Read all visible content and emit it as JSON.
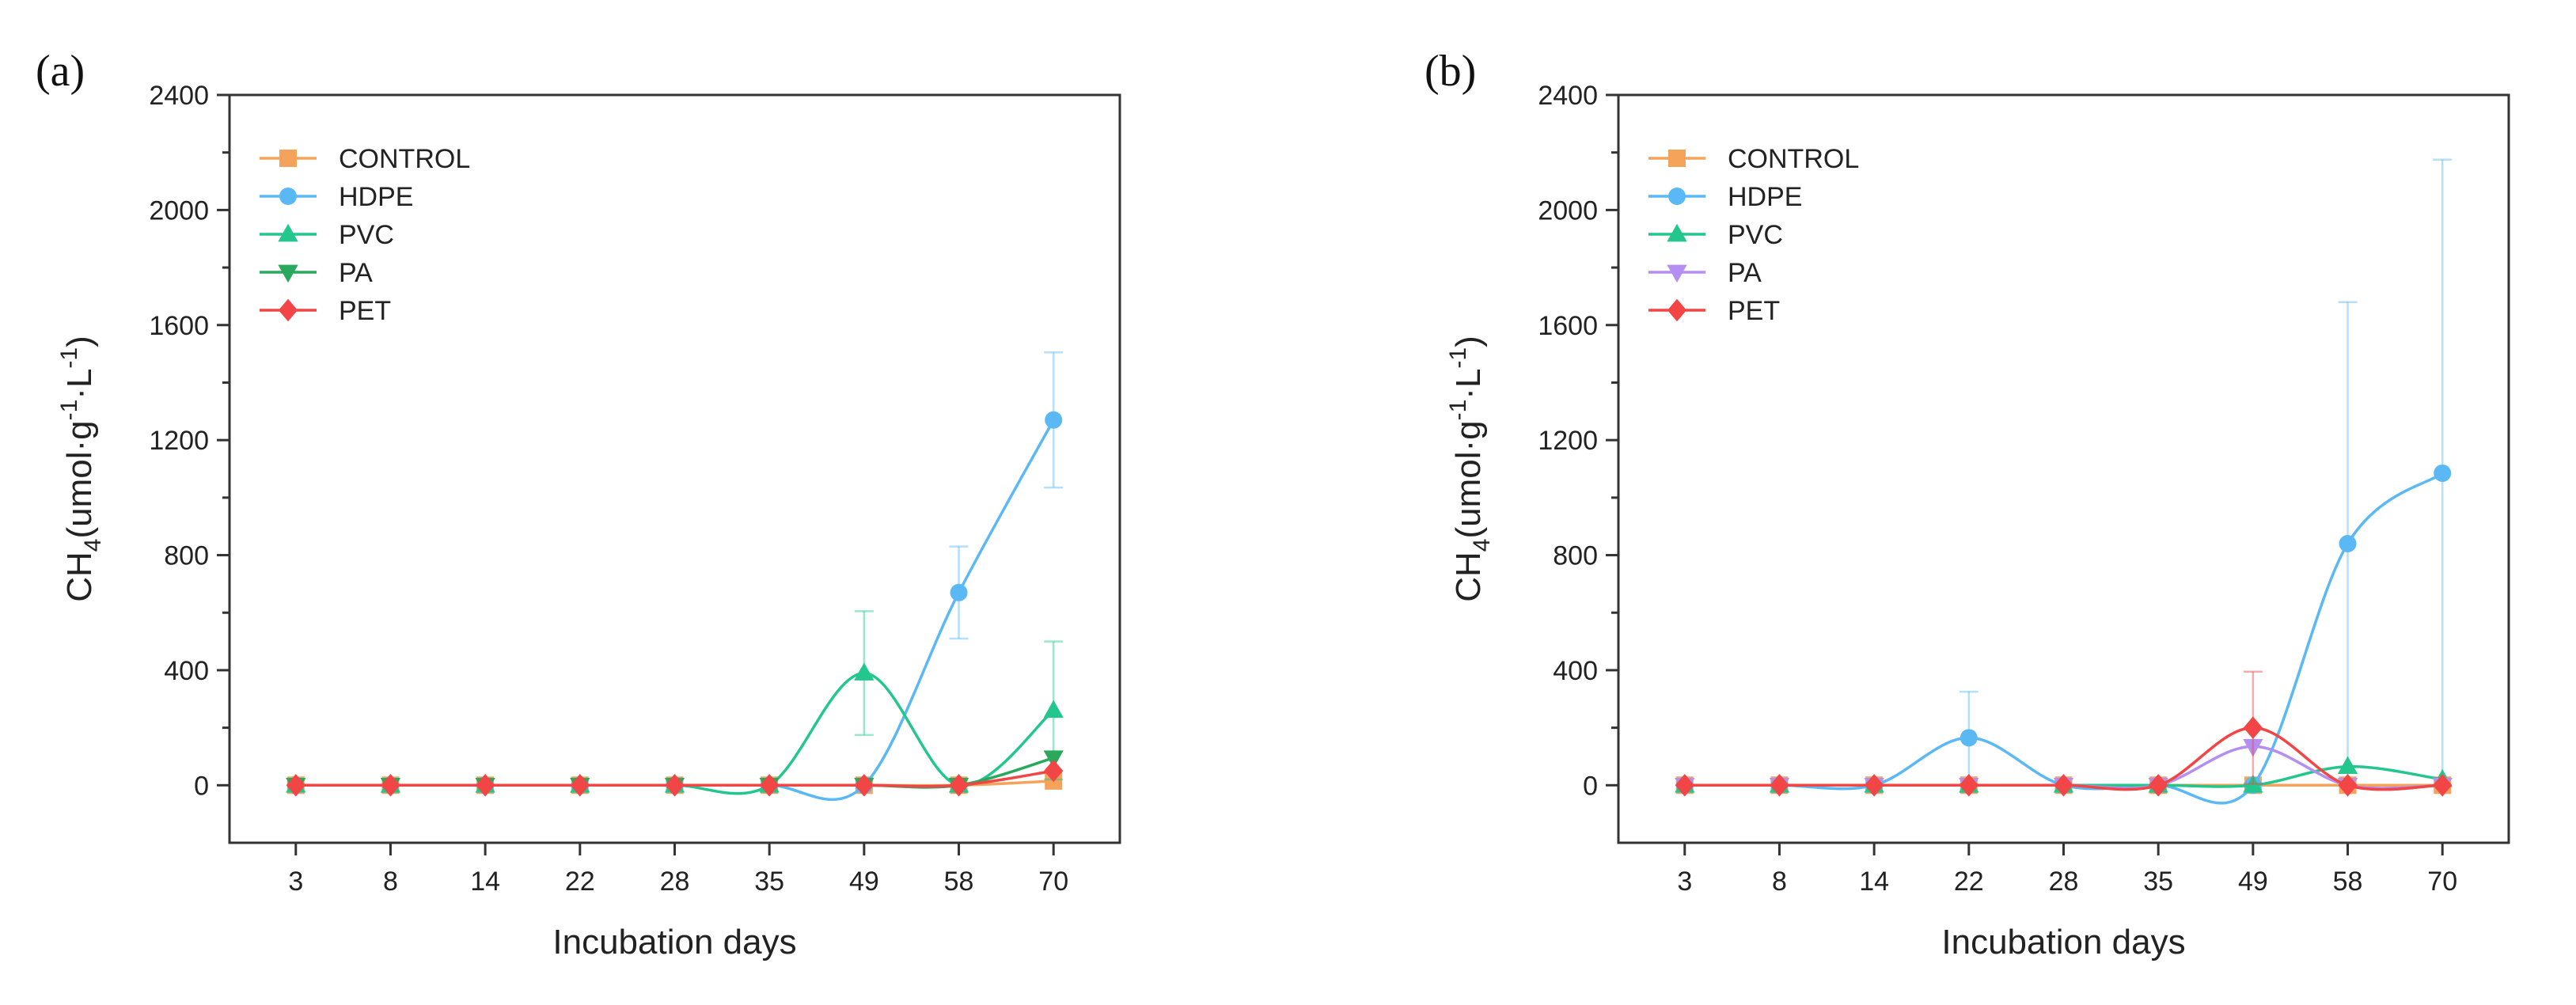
{
  "figure": {
    "x_label": "Incubation days",
    "y_label_prefix": "CH",
    "y_label_sub": "4",
    "y_label_unit_a": "(umol·g",
    "y_label_exp1": "-1",
    "y_label_unit_b": "·L",
    "y_label_exp2": "-1",
    "y_label_close": ")"
  },
  "chart_data": [
    {
      "panel_label": "(a)",
      "type": "line",
      "categories": [
        "3",
        "8",
        "14",
        "22",
        "28",
        "35",
        "49",
        "58",
        "70"
      ],
      "ylim": [
        -200,
        2400
      ],
      "yticks": [
        0,
        400,
        800,
        1200,
        1600,
        2000,
        2400
      ],
      "xlabel": "Incubation days",
      "ylabel": "CH4(umol·g-1·L-1)",
      "legend_position": "top-left",
      "series": [
        {
          "name": "CONTROL",
          "color": "#f5a35b",
          "marker": "square",
          "values": [
            0,
            0,
            0,
            0,
            0,
            0,
            0,
            0,
            15
          ],
          "errors": [
            0,
            0,
            0,
            0,
            0,
            0,
            0,
            0,
            0
          ]
        },
        {
          "name": "HDPE",
          "color": "#5ab8f5",
          "marker": "circle",
          "values": [
            0,
            0,
            0,
            0,
            0,
            0,
            0,
            670,
            1270
          ],
          "errors": [
            0,
            0,
            0,
            0,
            0,
            0,
            0,
            160,
            235
          ]
        },
        {
          "name": "PVC",
          "color": "#23c78e",
          "marker": "triangle-up",
          "values": [
            0,
            0,
            0,
            0,
            0,
            0,
            390,
            0,
            260
          ],
          "errors": [
            0,
            0,
            0,
            0,
            0,
            0,
            215,
            0,
            240
          ]
        },
        {
          "name": "PA",
          "color": "#2aa85c",
          "marker": "triangle-down",
          "values": [
            0,
            0,
            0,
            0,
            0,
            0,
            0,
            0,
            95
          ],
          "errors": [
            0,
            0,
            0,
            0,
            0,
            0,
            0,
            0,
            0
          ]
        },
        {
          "name": "PET",
          "color": "#f24545",
          "marker": "diamond",
          "values": [
            0,
            0,
            0,
            0,
            0,
            0,
            0,
            0,
            50
          ],
          "errors": [
            0,
            0,
            0,
            0,
            0,
            0,
            0,
            0,
            0
          ]
        }
      ]
    },
    {
      "panel_label": "(b)",
      "type": "line",
      "categories": [
        "3",
        "8",
        "14",
        "22",
        "28",
        "35",
        "49",
        "58",
        "70"
      ],
      "ylim": [
        -200,
        2400
      ],
      "yticks": [
        0,
        400,
        800,
        1200,
        1600,
        2000,
        2400
      ],
      "xlabel": "Incubation days",
      "ylabel": "CH4(umol·g-1·L-1)",
      "legend_position": "top-left",
      "series": [
        {
          "name": "CONTROL",
          "color": "#f5a35b",
          "marker": "square",
          "values": [
            0,
            0,
            0,
            0,
            0,
            0,
            0,
            0,
            0
          ],
          "errors": [
            0,
            0,
            0,
            0,
            0,
            0,
            0,
            0,
            0
          ]
        },
        {
          "name": "HDPE",
          "color": "#5ab8f5",
          "marker": "circle",
          "values": [
            0,
            0,
            0,
            165,
            0,
            0,
            0,
            840,
            1085
          ],
          "errors": [
            0,
            0,
            0,
            160,
            0,
            0,
            0,
            840,
            1090
          ]
        },
        {
          "name": "PVC",
          "color": "#23c78e",
          "marker": "triangle-up",
          "values": [
            0,
            0,
            0,
            0,
            0,
            0,
            0,
            65,
            20
          ],
          "errors": [
            0,
            0,
            0,
            0,
            0,
            0,
            0,
            0,
            0
          ]
        },
        {
          "name": "PA",
          "color": "#b48ef0",
          "marker": "triangle-down",
          "values": [
            0,
            0,
            0,
            0,
            0,
            0,
            135,
            0,
            0
          ],
          "errors": [
            0,
            0,
            0,
            0,
            0,
            0,
            0,
            0,
            0
          ]
        },
        {
          "name": "PET",
          "color": "#f24545",
          "marker": "diamond",
          "values": [
            0,
            0,
            0,
            0,
            0,
            0,
            200,
            0,
            0
          ],
          "errors": [
            0,
            0,
            0,
            0,
            0,
            0,
            195,
            0,
            0
          ]
        }
      ]
    }
  ]
}
